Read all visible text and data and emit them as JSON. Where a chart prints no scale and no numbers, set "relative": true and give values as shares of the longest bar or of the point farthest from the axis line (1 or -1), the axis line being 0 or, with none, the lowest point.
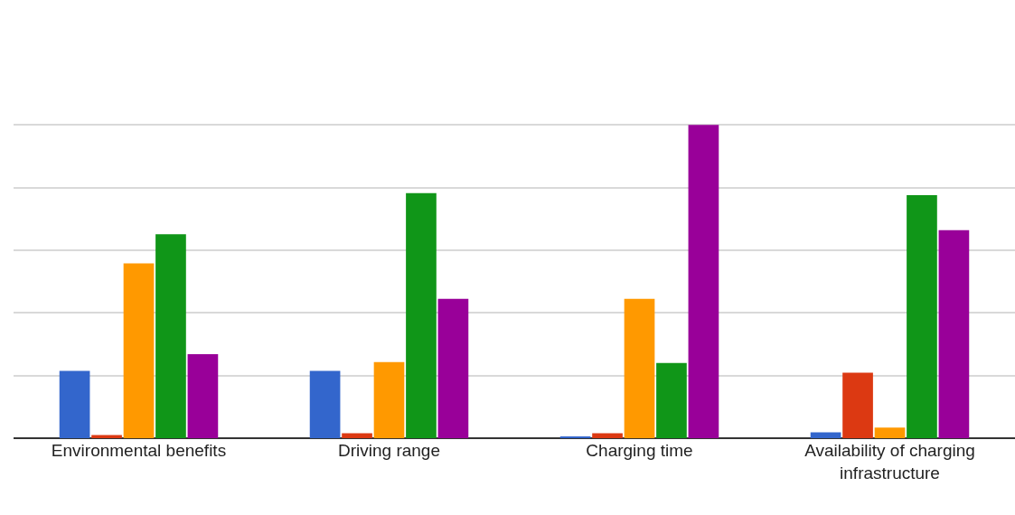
{
  "chart_data": {
    "type": "bar",
    "relative": true,
    "grid": "y",
    "categories": [
      "Environmental benefits",
      "Driving range",
      "Charging time",
      "Availability of charging infrastructure"
    ],
    "series": [
      {
        "color": "#3366cc",
        "values": [
          0.215,
          0.215,
          0.006,
          0.019
        ]
      },
      {
        "color": "#dc3912",
        "values": [
          0.01,
          0.016,
          0.016,
          0.209
        ]
      },
      {
        "color": "#ff9900",
        "values": [
          0.558,
          0.243,
          0.445,
          0.034
        ]
      },
      {
        "color": "#109618",
        "values": [
          0.651,
          0.782,
          0.24,
          0.776
        ]
      },
      {
        "color": "#990099",
        "values": [
          0.268,
          0.445,
          1,
          0.664
        ]
      }
    ]
  }
}
